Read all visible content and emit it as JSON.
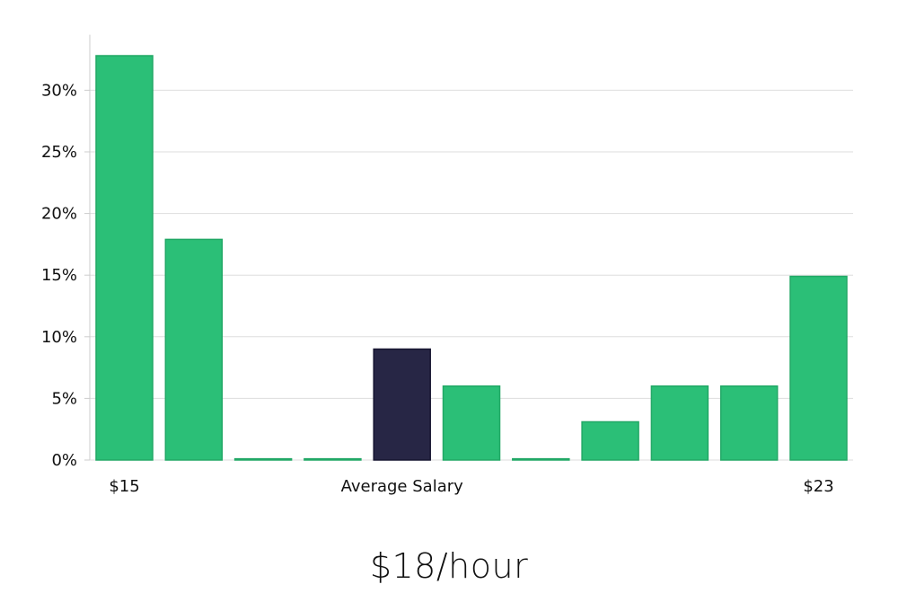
{
  "chart_data": {
    "type": "bar",
    "categories": [
      "$15",
      "",
      "",
      "",
      "Average Salary",
      "",
      "",
      "",
      "",
      "",
      "$23"
    ],
    "values": [
      32.8,
      17.9,
      0.1,
      0.1,
      9.0,
      6.0,
      0.1,
      3.1,
      6.0,
      6.0,
      14.9
    ],
    "highlight_index": 4,
    "yticks": [
      "0%",
      "5%",
      "10%",
      "15%",
      "20%",
      "25%",
      "30%"
    ],
    "ylim": [
      0,
      34.5
    ],
    "grid": true,
    "colors": {
      "bar": "#2bbf77",
      "bar_border": "#22a866",
      "highlight": "#272645",
      "highlight_border": "#161530",
      "grid": "#dddddd",
      "axis": "#cccccc"
    }
  },
  "caption": "$18/hour"
}
